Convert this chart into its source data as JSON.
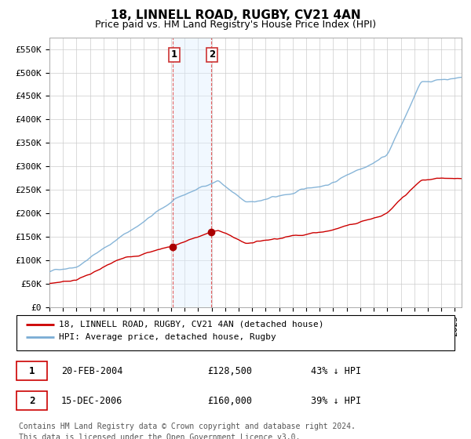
{
  "title": "18, LINNELL ROAD, RUGBY, CV21 4AN",
  "subtitle": "Price paid vs. HM Land Registry's House Price Index (HPI)",
  "ylabel_ticks": [
    "£0",
    "£50K",
    "£100K",
    "£150K",
    "£200K",
    "£250K",
    "£300K",
    "£350K",
    "£400K",
    "£450K",
    "£500K",
    "£550K"
  ],
  "ytick_values": [
    0,
    50000,
    100000,
    150000,
    200000,
    250000,
    300000,
    350000,
    400000,
    450000,
    500000,
    550000
  ],
  "ylim": [
    0,
    575000
  ],
  "xlim_start": 1995.0,
  "xlim_end": 2025.5,
  "purchase1_x": 2004.13,
  "purchase1_price": 128500,
  "purchase2_x": 2006.96,
  "purchase2_price": 160000,
  "red_line_color": "#cc0000",
  "blue_line_color": "#7aadd4",
  "shade_color": "#ddeeff",
  "marker_color": "#aa0000",
  "grid_color": "#cccccc",
  "background_color": "#ffffff",
  "legend_label_red": "18, LINNELL ROAD, RUGBY, CV21 4AN (detached house)",
  "legend_label_blue": "HPI: Average price, detached house, Rugby",
  "table_row1": [
    "1",
    "20-FEB-2004",
    "£128,500",
    "43% ↓ HPI"
  ],
  "table_row2": [
    "2",
    "15-DEC-2006",
    "£160,000",
    "39% ↓ HPI"
  ],
  "footer_line1": "Contains HM Land Registry data © Crown copyright and database right 2024.",
  "footer_line2": "This data is licensed under the Open Government Licence v3.0.",
  "title_fontsize": 11,
  "subtitle_fontsize": 9,
  "tick_fontsize": 8,
  "legend_fontsize": 8,
  "table_fontsize": 8.5,
  "footer_fontsize": 7
}
